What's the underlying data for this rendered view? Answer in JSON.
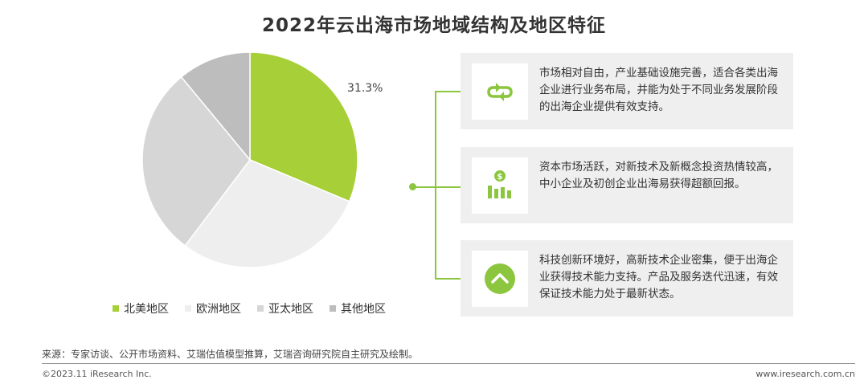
{
  "title": "2022年云出海市场地域结构及地区特征",
  "chart_data": {
    "type": "pie",
    "title": "2022年云出海市场地域结构及地区特征",
    "slices": [
      {
        "name": "北美地区",
        "value": 31.3,
        "color": "#a7cf38",
        "label": "31.3%"
      },
      {
        "name": "欧洲地区",
        "value": 29.0,
        "color": "#eeeeee",
        "label": ""
      },
      {
        "name": "亚太地区",
        "value": 28.7,
        "color": "#d6d6d6",
        "label": ""
      },
      {
        "name": "其他地区",
        "value": 11.0,
        "color": "#bdbdbd",
        "label": ""
      }
    ],
    "legend_position": "bottom"
  },
  "cards": [
    {
      "icon": "cycle-arrows-icon",
      "text": "市场相对自由，产业基础设施完善，适合各类出海企业进行业务布局，并能为处于不同业务发展阶段的出海企业提供有效支持。"
    },
    {
      "icon": "money-bar-chart-icon",
      "text": "资本市场活跃，对新技术及新概念投资热情较高，中小企业及初创企业出海易获得超额回报。"
    },
    {
      "icon": "chevron-up-circle-icon",
      "text": "科技创新环境好，高新技术企业密集，便于出海企业获得技术能力支持。产品及服务迭代迅速，有效保证技术能力处于最新状态。"
    }
  ],
  "colors": {
    "accent": "#8cc63f"
  },
  "footer": {
    "source": "来源：专家访谈、公开市场资料、艾瑞估值模型推算，艾瑞咨询研究院自主研究及绘制。",
    "copyright": "©2023.11 iResearch Inc.",
    "website": "www.iresearch.com.cn"
  }
}
